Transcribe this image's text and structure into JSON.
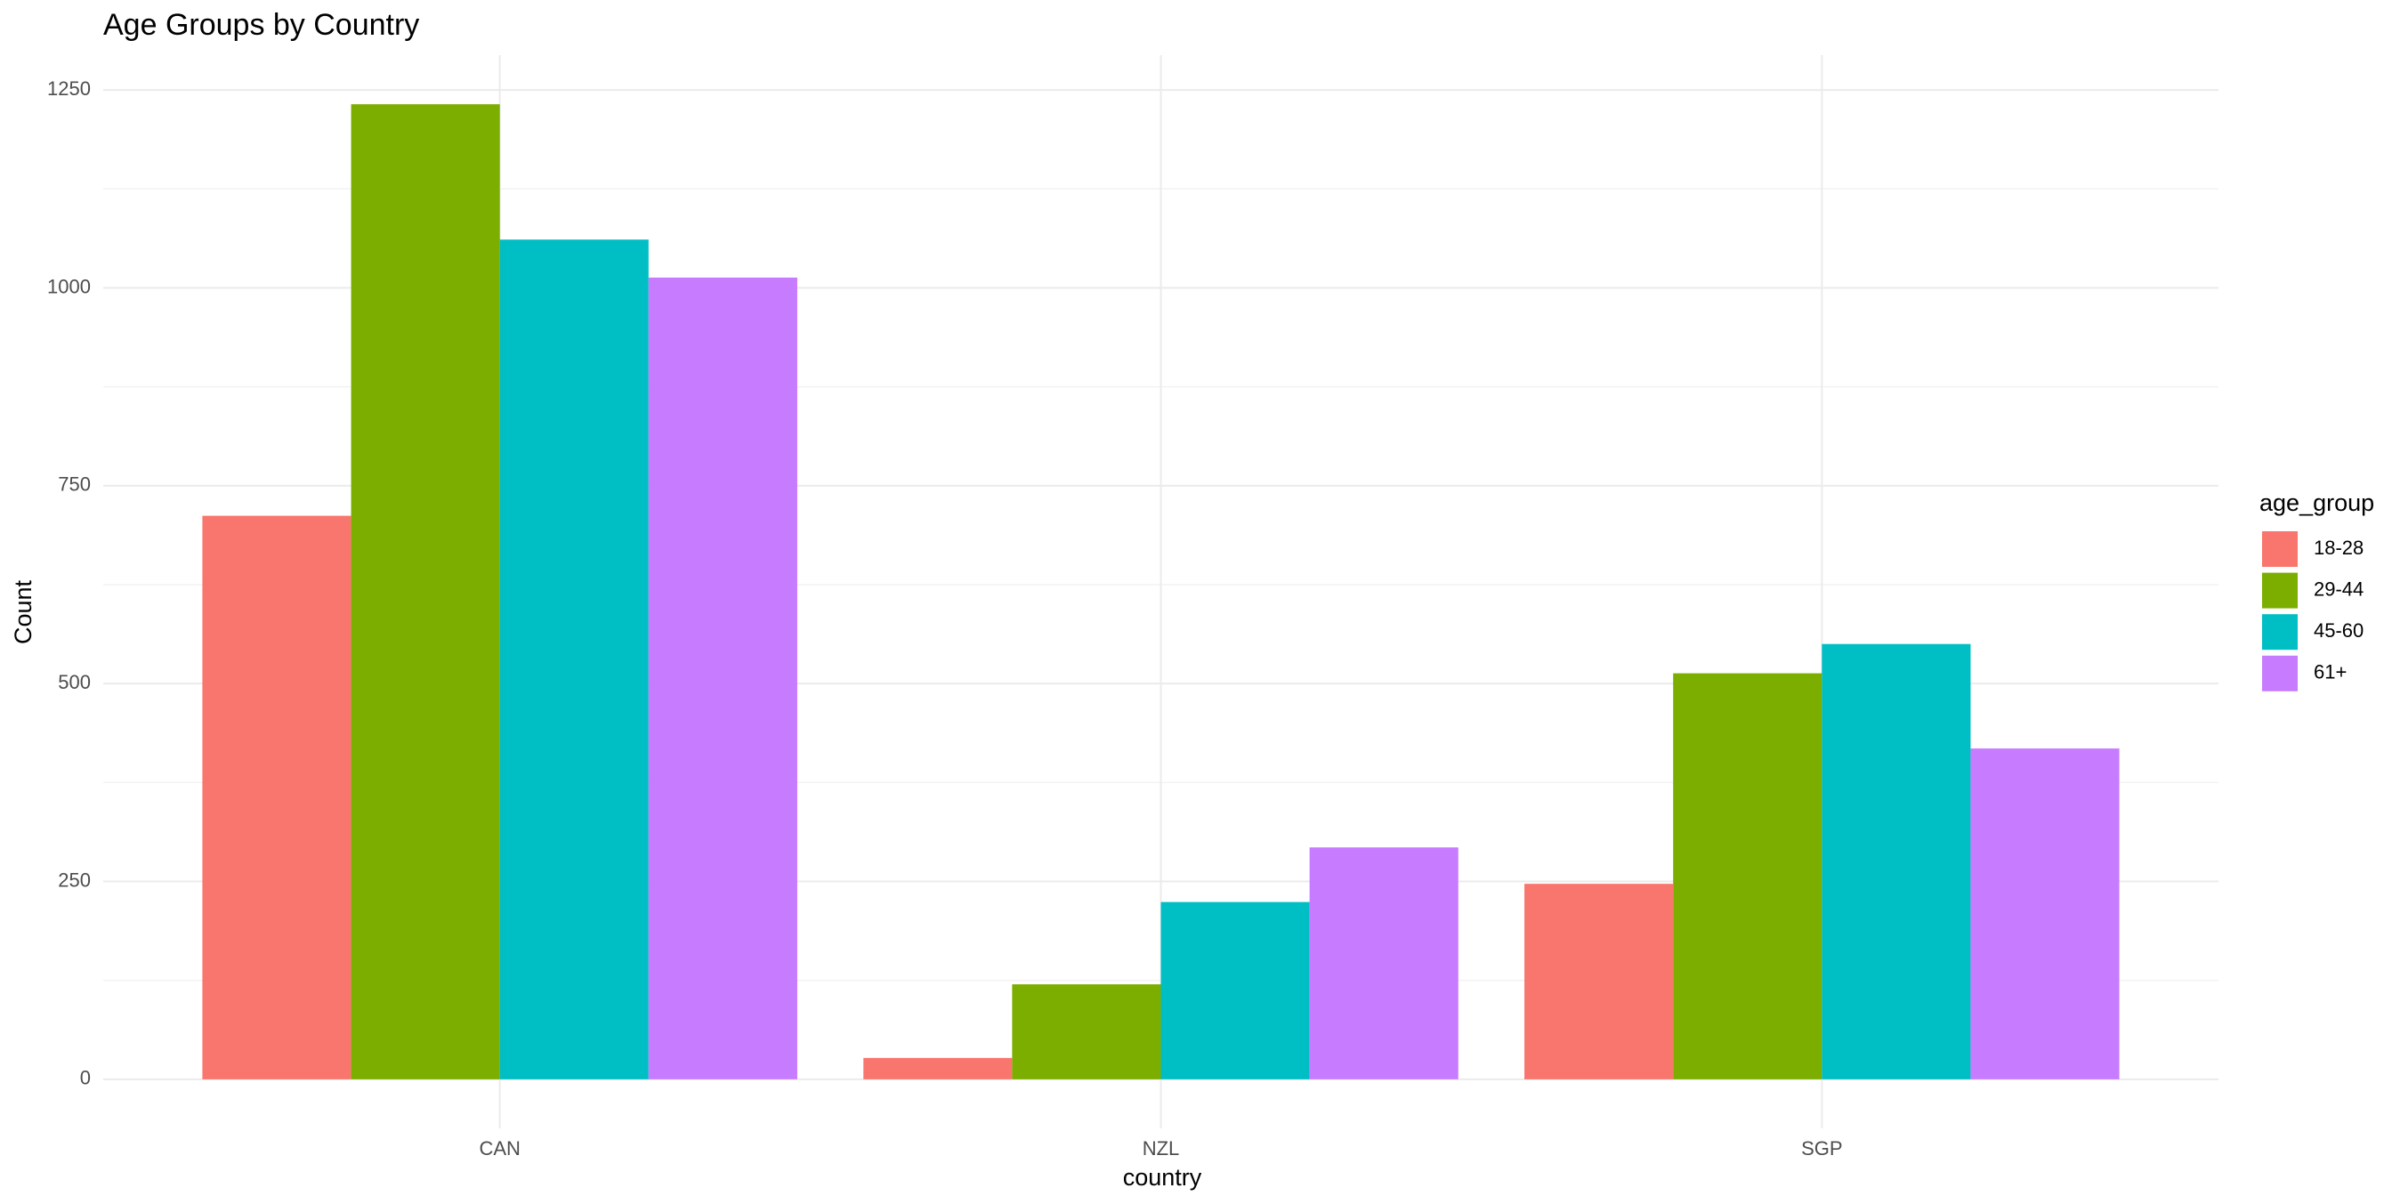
{
  "chart_data": {
    "type": "bar",
    "title": "Age Groups by Country",
    "x_label": "country",
    "y_label": "Count",
    "categories": [
      "CAN",
      "NZL",
      "SGP"
    ],
    "legend_title": "age_group",
    "legend_position": "right",
    "series": [
      {
        "name": "18-28",
        "color": "#f8766d",
        "values": [
          712,
          27,
          247
        ]
      },
      {
        "name": "29-44",
        "color": "#7cae00",
        "values": [
          1232,
          120,
          513
        ]
      },
      {
        "name": "45-60",
        "color": "#00bfc4",
        "values": [
          1061,
          224,
          550
        ]
      },
      {
        "name": "61+",
        "color": "#c77cff",
        "values": [
          1013,
          293,
          418
        ]
      }
    ],
    "ylim": [
      -62,
      1294
    ],
    "yticks": [
      0,
      250,
      500,
      750,
      1000,
      1250
    ],
    "minor_yticks": [
      125,
      375,
      625,
      875,
      1125
    ],
    "grid": true
  }
}
